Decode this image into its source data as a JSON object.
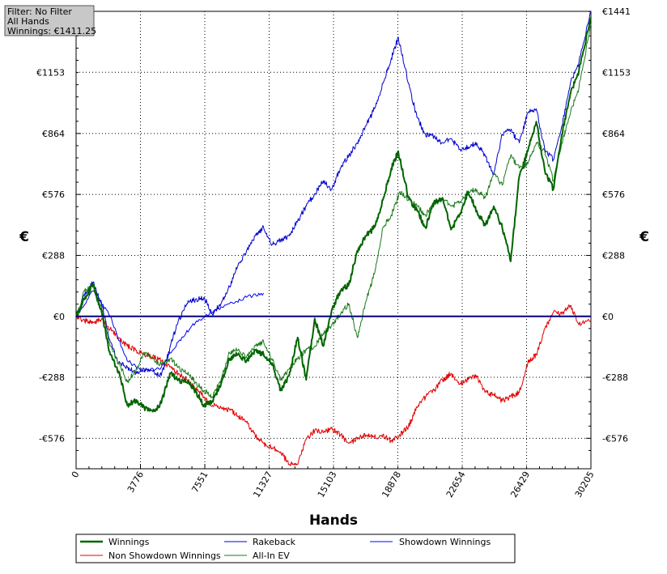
{
  "info_box": {
    "filter": "Filter: No Filter",
    "hands": "All Hands",
    "winnings": "Winnings: €1411.25"
  },
  "colors": {
    "winnings": "#006400",
    "rakeback": "#0000cc",
    "showdown": "#0000ff",
    "non_showdown": "#e00000",
    "allin_ev": "#1a7a1a",
    "zero_line": "#000080"
  },
  "chart_data": {
    "type": "line",
    "xlabel": "Hands",
    "ylabel": "€",
    "ylabel_right": "€",
    "xlim": [
      0,
      30205
    ],
    "ylim": [
      -720,
      1441
    ],
    "grid": true,
    "legend_position": "bottom",
    "x_ticks": [
      0,
      3776,
      7551,
      11327,
      15103,
      18878,
      22654,
      26429,
      30205
    ],
    "x_tick_labels": [
      "0",
      "3776",
      "7551",
      "11327",
      "15103",
      "18878",
      "22654",
      "26429",
      "30205"
    ],
    "y_ticks": [
      -576,
      -288,
      0,
      288,
      576,
      864,
      1153,
      1441
    ],
    "y_tick_labels": [
      "-€576",
      "-€288",
      "€0",
      "€288",
      "€576",
      "€864",
      "€1153",
      "€1441"
    ],
    "series": [
      {
        "name": "Winnings",
        "key": "winnings",
        "x": [
          0,
          500,
          1000,
          1500,
          2000,
          2500,
          3000,
          3500,
          4000,
          4500,
          5000,
          5500,
          6000,
          6500,
          7000,
          7500,
          8000,
          8500,
          9000,
          9500,
          10000,
          10500,
          11000,
          11500,
          12000,
          12500,
          13000,
          13500,
          14000,
          14500,
          15000,
          15500,
          16000,
          16500,
          17000,
          17500,
          18000,
          18500,
          18900,
          19500,
          20000,
          20500,
          21000,
          21500,
          22000,
          22500,
          23000,
          23500,
          24000,
          24500,
          25000,
          25500,
          26000,
          26500,
          27000,
          27500,
          28000,
          28500,
          29000,
          29500,
          30205
        ],
        "y": [
          0,
          80,
          150,
          20,
          -180,
          -260,
          -420,
          -400,
          -430,
          -450,
          -410,
          -270,
          -300,
          -310,
          -350,
          -420,
          -400,
          -320,
          -200,
          -180,
          -210,
          -160,
          -180,
          -220,
          -350,
          -280,
          -100,
          -300,
          -10,
          -140,
          30,
          120,
          150,
          310,
          380,
          420,
          550,
          700,
          780,
          560,
          500,
          420,
          540,
          560,
          410,
          480,
          590,
          500,
          430,
          520,
          420,
          260,
          660,
          780,
          920,
          690,
          600,
          860,
          1050,
          1160,
          1411
        ]
      },
      {
        "name": "Rakeback",
        "key": "rakeback",
        "x": [
          0,
          500,
          1000,
          1500,
          2000,
          2500,
          3000,
          3500,
          4000,
          4500,
          5000,
          5500,
          6000,
          6500,
          7000,
          7500,
          8000,
          8500,
          9000,
          9500,
          10000,
          10500,
          11000,
          11500,
          12000,
          12500,
          13000,
          13500,
          14000,
          14500,
          15000,
          15500,
          16000,
          16500,
          17000,
          17500,
          18000,
          18500,
          18900,
          19500,
          20000,
          20500,
          21000,
          21500,
          22000,
          22500,
          23000,
          23500,
          24000,
          24500,
          25000,
          25500,
          26000,
          26500,
          27000,
          27500,
          28000,
          28500,
          29000,
          29500,
          30205
        ],
        "y": [
          0,
          100,
          160,
          60,
          -120,
          -220,
          -240,
          -270,
          -250,
          -260,
          -280,
          -150,
          -20,
          60,
          80,
          90,
          10,
          60,
          140,
          240,
          310,
          380,
          420,
          340,
          360,
          380,
          450,
          520,
          580,
          640,
          600,
          700,
          760,
          820,
          900,
          980,
          1100,
          1220,
          1320,
          1100,
          940,
          860,
          850,
          820,
          840,
          790,
          800,
          820,
          760,
          670,
          860,
          880,
          820,
          960,
          980,
          790,
          740,
          900,
          1100,
          1200,
          1441
        ]
      },
      {
        "name": "Showdown Winnings",
        "key": "showdown",
        "x": [
          0,
          1000,
          2000,
          3000,
          4000,
          5000,
          6000,
          7000,
          8000,
          9000,
          10000,
          11000
        ],
        "y": [
          0,
          120,
          0,
          -210,
          -260,
          -240,
          -120,
          -30,
          20,
          60,
          90,
          110
        ]
      },
      {
        "name": "Non Showdown Winnings",
        "key": "non_showdown",
        "x": [
          0,
          500,
          1000,
          1500,
          2000,
          2500,
          3000,
          3500,
          4000,
          4500,
          5000,
          5500,
          6000,
          6500,
          7000,
          7500,
          8000,
          8500,
          9000,
          9500,
          10000,
          10500,
          11000,
          11500,
          12000,
          12500,
          13000,
          13500,
          14000,
          14500,
          15000,
          15500,
          16000,
          16500,
          17000,
          17500,
          18000,
          18500,
          19000,
          19500,
          20000,
          20500,
          21000,
          21500,
          22000,
          22500,
          23000,
          23500,
          24000,
          24500,
          25000,
          25500,
          26000,
          26500,
          27000,
          27500,
          28000,
          28500,
          29000,
          29500,
          30205
        ],
        "y": [
          0,
          -20,
          -30,
          -10,
          -60,
          -100,
          -140,
          -160,
          -180,
          -190,
          -210,
          -240,
          -270,
          -300,
          -340,
          -380,
          -420,
          -430,
          -440,
          -470,
          -500,
          -560,
          -600,
          -620,
          -640,
          -700,
          -700,
          -580,
          -540,
          -550,
          -530,
          -560,
          -600,
          -580,
          -560,
          -570,
          -560,
          -590,
          -560,
          -520,
          -430,
          -380,
          -350,
          -300,
          -270,
          -320,
          -300,
          -280,
          -360,
          -370,
          -400,
          -380,
          -360,
          -220,
          -180,
          -60,
          20,
          10,
          50,
          -40,
          -20
        ]
      },
      {
        "name": "All-In EV",
        "key": "allin_ev",
        "x": [
          0,
          500,
          1000,
          1500,
          2000,
          2500,
          3000,
          3500,
          4000,
          4500,
          5000,
          5500,
          6000,
          6500,
          7000,
          7500,
          8000,
          8500,
          9000,
          9500,
          10000,
          10500,
          11000,
          11500,
          12000,
          12500,
          13000,
          13500,
          14000,
          14500,
          15000,
          15500,
          16000,
          16500,
          17000,
          17500,
          18000,
          18500,
          19000,
          19500,
          20000,
          20500,
          21000,
          21500,
          22000,
          22500,
          23000,
          23500,
          24000,
          24500,
          25000,
          25500,
          26000,
          26500,
          27000,
          27500,
          28000,
          28500,
          29000,
          29500,
          30205
        ],
        "y": [
          0,
          120,
          140,
          40,
          -140,
          -220,
          -310,
          -260,
          -170,
          -200,
          -230,
          -200,
          -240,
          -270,
          -310,
          -350,
          -380,
          -300,
          -170,
          -160,
          -190,
          -140,
          -120,
          -200,
          -300,
          -250,
          -200,
          -160,
          -140,
          -80,
          -40,
          10,
          60,
          -100,
          70,
          200,
          420,
          480,
          590,
          550,
          520,
          480,
          530,
          560,
          520,
          540,
          590,
          600,
          560,
          680,
          620,
          760,
          700,
          720,
          820,
          780,
          640,
          820,
          960,
          1080,
          1380
        ]
      }
    ]
  },
  "legend": {
    "winnings": "Winnings",
    "rakeback": "Rakeback",
    "showdown": "Showdown Winnings",
    "non_showdown": "Non Showdown Winnings",
    "allin_ev": "All-In EV"
  }
}
